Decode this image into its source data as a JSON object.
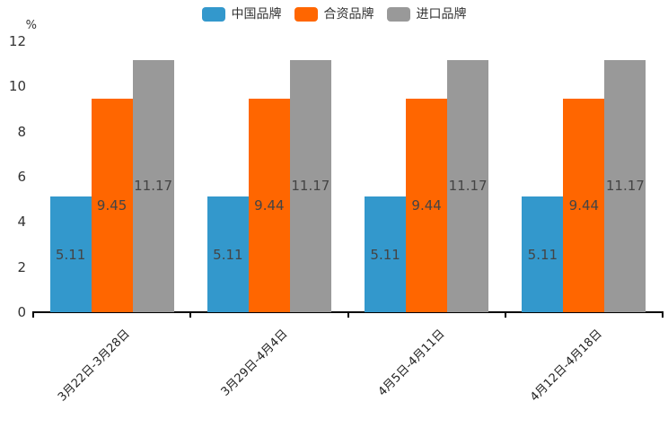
{
  "chart_data": {
    "type": "bar",
    "title": "",
    "unit_label": "%",
    "categories": [
      "3月22日-3月28日",
      "3月29日-4月4日",
      "4月5日-4月11日",
      "4月12日-4月18日"
    ],
    "series": [
      {
        "name": "中国品牌",
        "color": "#3398CC",
        "values": [
          5.11,
          5.11,
          5.11,
          5.11
        ]
      },
      {
        "name": "合资品牌",
        "color": "#FF6600",
        "values": [
          9.45,
          9.44,
          9.44,
          9.44
        ]
      },
      {
        "name": "进口品牌",
        "color": "#999999",
        "values": [
          11.17,
          11.17,
          11.17,
          11.17
        ]
      }
    ],
    "y_ticks": [
      0,
      2,
      4,
      6,
      8,
      10,
      12
    ],
    "ylim": [
      0,
      12
    ],
    "grid": false,
    "legend_position": "top",
    "value_labels": "inside-center",
    "value_label_decimals": 2,
    "colors": {
      "axis": "#000000",
      "tick_text": "#333333",
      "value_text": "#444444",
      "background": "#ffffff"
    }
  }
}
